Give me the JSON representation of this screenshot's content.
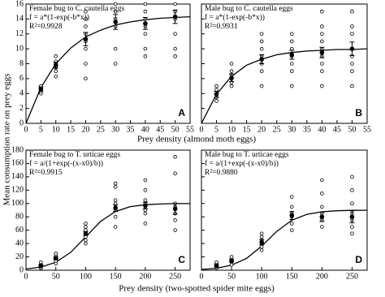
{
  "chart_data": [
    {
      "type": "scatter",
      "title": "Female bug to C. cautella eggs",
      "equation": "f = a*(1-exp(-b*x))",
      "r2": "R²=0.9928",
      "panel": "A",
      "xlabel": "Prey density (almond moth eggs)",
      "ylabel": "Mean consumption rate on prey eggs",
      "xlim": [
        0,
        55
      ],
      "xticks": [
        0,
        5,
        10,
        15,
        20,
        25,
        30,
        35,
        40,
        45,
        50,
        55
      ],
      "ylim": [
        0,
        16
      ],
      "yticks": [
        0,
        2,
        4,
        6,
        8,
        10,
        12,
        14,
        16
      ],
      "show_ytick_labels": true,
      "points": {
        "x": [
          5,
          5,
          5,
          5,
          5,
          10,
          10,
          10,
          10,
          10,
          10,
          20,
          20,
          20,
          20,
          20,
          20,
          20,
          20,
          30,
          30,
          30,
          30,
          30,
          30,
          40,
          40,
          40,
          40,
          40,
          40,
          40,
          50,
          50,
          50,
          50,
          50,
          50
        ],
        "values": [
          4.0,
          4.3,
          4.5,
          4.8,
          5.0,
          6.3,
          7,
          7.5,
          8,
          8.3,
          9,
          6,
          8,
          10,
          11,
          12,
          13,
          14,
          15,
          8,
          10,
          13,
          14,
          15,
          16,
          9,
          10,
          12,
          13,
          14,
          15,
          16,
          9,
          10,
          12,
          14,
          15,
          16
        ]
      },
      "means": {
        "x": [
          5,
          10,
          20,
          30,
          40,
          50
        ],
        "values": [
          4.6,
          7.8,
          11.3,
          13.6,
          13.4,
          14.3
        ],
        "errors": [
          0.3,
          0.4,
          0.9,
          1.0,
          0.8,
          0.9
        ]
      },
      "fit": {
        "x": [
          0,
          5,
          10,
          15,
          20,
          25,
          30,
          35,
          40,
          45,
          50,
          55
        ],
        "values": [
          0,
          4.8,
          8.0,
          10.1,
          11.6,
          12.5,
          13.2,
          13.6,
          13.9,
          14.1,
          14.2,
          14.3
        ]
      }
    },
    {
      "type": "scatter",
      "title": "Male bug to C. cautella eggs",
      "equation": "f = a*(1-exp(-b*x))",
      "r2": "R²=0.9931",
      "panel": "B",
      "xlim": [
        0,
        55
      ],
      "xticks": [
        0,
        5,
        10,
        15,
        20,
        25,
        30,
        35,
        40,
        45,
        50,
        55
      ],
      "ylim": [
        0,
        16
      ],
      "yticks": [
        0,
        2,
        4,
        6,
        8,
        10,
        12,
        14,
        16
      ],
      "show_ytick_labels": false,
      "points": {
        "x": [
          5,
          5,
          5,
          5,
          5,
          10,
          10,
          10,
          10,
          10,
          10,
          20,
          20,
          20,
          20,
          20,
          20,
          20,
          30,
          30,
          30,
          30,
          30,
          30,
          30,
          40,
          40,
          40,
          40,
          40,
          40,
          40,
          40,
          40,
          50,
          50,
          50,
          50,
          50,
          50,
          50,
          50
        ],
        "values": [
          3,
          3.5,
          4,
          4.5,
          5,
          5,
          5.5,
          6,
          6.5,
          7,
          8,
          5,
          7,
          8,
          9,
          10,
          11,
          12,
          5,
          7,
          8,
          9,
          10,
          11,
          12,
          5,
          7,
          8,
          9,
          10,
          11,
          12,
          13,
          15,
          5,
          7,
          8,
          9,
          10,
          12,
          13,
          15
        ]
      },
      "means": {
        "x": [
          5,
          10,
          20,
          30,
          40,
          50
        ],
        "values": [
          3.9,
          6.1,
          8.6,
          9.2,
          9.5,
          10.0
        ],
        "errors": [
          0.4,
          0.5,
          0.6,
          0.6,
          0.7,
          0.9
        ]
      },
      "fit": {
        "x": [
          0,
          5,
          10,
          15,
          20,
          25,
          30,
          35,
          40,
          45,
          50,
          55
        ],
        "values": [
          0,
          3.9,
          6.3,
          7.8,
          8.6,
          9.2,
          9.5,
          9.7,
          9.8,
          9.9,
          9.9,
          10.0
        ]
      }
    },
    {
      "type": "scatter",
      "title": "Female bug to T. urticae eggs",
      "equation": "f = a/(1+exp(-(x-x0)/b))",
      "r2": "R²=0.9915",
      "panel": "C",
      "xlabel": "Prey density (two-spotted spider mite eggs)",
      "xlim": [
        0,
        275
      ],
      "xticks": [
        0,
        50,
        100,
        150,
        200,
        250
      ],
      "ylim": [
        0,
        180
      ],
      "yticks": [
        0,
        20,
        40,
        60,
        80,
        100,
        120,
        140,
        160,
        180
      ],
      "show_ytick_labels": true,
      "points": {
        "x": [
          25,
          25,
          25,
          25,
          25,
          50,
          50,
          50,
          50,
          50,
          100,
          100,
          100,
          100,
          100,
          100,
          100,
          150,
          150,
          150,
          150,
          150,
          150,
          150,
          150,
          200,
          200,
          200,
          200,
          200,
          200,
          200,
          200,
          250,
          250,
          250,
          250,
          250,
          250,
          250
        ],
        "values": [
          3,
          5,
          7,
          9,
          12,
          10,
          14,
          18,
          22,
          25,
          40,
          45,
          50,
          55,
          60,
          65,
          70,
          65,
          80,
          90,
          95,
          100,
          105,
          125,
          130,
          70,
          85,
          90,
          95,
          100,
          105,
          120,
          135,
          60,
          75,
          85,
          95,
          100,
          145,
          170
        ]
      },
      "means": {
        "x": [
          25,
          50,
          100,
          150,
          200,
          250
        ],
        "values": [
          7,
          18,
          55,
          93,
          97,
          92
        ],
        "errors": [
          1,
          2,
          3,
          5,
          5,
          8
        ]
      },
      "fit": {
        "x": [
          0,
          25,
          50,
          75,
          100,
          125,
          150,
          175,
          200,
          225,
          250,
          275
        ],
        "values": [
          1.8,
          4.7,
          11.9,
          26.9,
          50,
          73.1,
          88.1,
          95.3,
          98.2,
          99.3,
          99.8,
          99.9
        ]
      }
    },
    {
      "type": "scatter",
      "title": "Male bug to T. urticae eggs",
      "equation": "f = a/(1+exp(-(x-x0)/b))",
      "r2": "R²=0.9880",
      "panel": "D",
      "xlim": [
        0,
        275
      ],
      "xticks": [
        0,
        50,
        100,
        150,
        200,
        250
      ],
      "ylim": [
        0,
        180
      ],
      "yticks": [
        0,
        20,
        40,
        60,
        80,
        100,
        120,
        140,
        160,
        180
      ],
      "show_ytick_labels": false,
      "points": {
        "x": [
          25,
          25,
          25,
          25,
          25,
          50,
          50,
          50,
          50,
          50,
          100,
          100,
          100,
          100,
          100,
          100,
          150,
          150,
          150,
          150,
          150,
          150,
          200,
          200,
          200,
          200,
          200,
          200,
          200,
          250,
          250,
          250,
          250,
          250,
          250,
          250
        ],
        "values": [
          3,
          5,
          8,
          10,
          12,
          8,
          12,
          15,
          18,
          20,
          30,
          35,
          40,
          45,
          50,
          55,
          60,
          70,
          80,
          85,
          95,
          110,
          65,
          75,
          80,
          85,
          95,
          115,
          135,
          55,
          65,
          75,
          85,
          100,
          120,
          140
        ]
      },
      "means": {
        "x": [
          25,
          50,
          100,
          150,
          200,
          250
        ],
        "values": [
          7,
          14,
          42,
          82,
          80,
          80
        ],
        "errors": [
          1.5,
          2,
          4,
          6,
          7,
          9
        ]
      },
      "fit": {
        "x": [
          0,
          25,
          50,
          75,
          100,
          125,
          150,
          175,
          200,
          225,
          250,
          275
        ],
        "values": [
          1.1,
          2.9,
          7.5,
          17.8,
          36.1,
          58.1,
          74.9,
          83.8,
          87.6,
          89.1,
          89.7,
          89.9
        ]
      }
    }
  ]
}
